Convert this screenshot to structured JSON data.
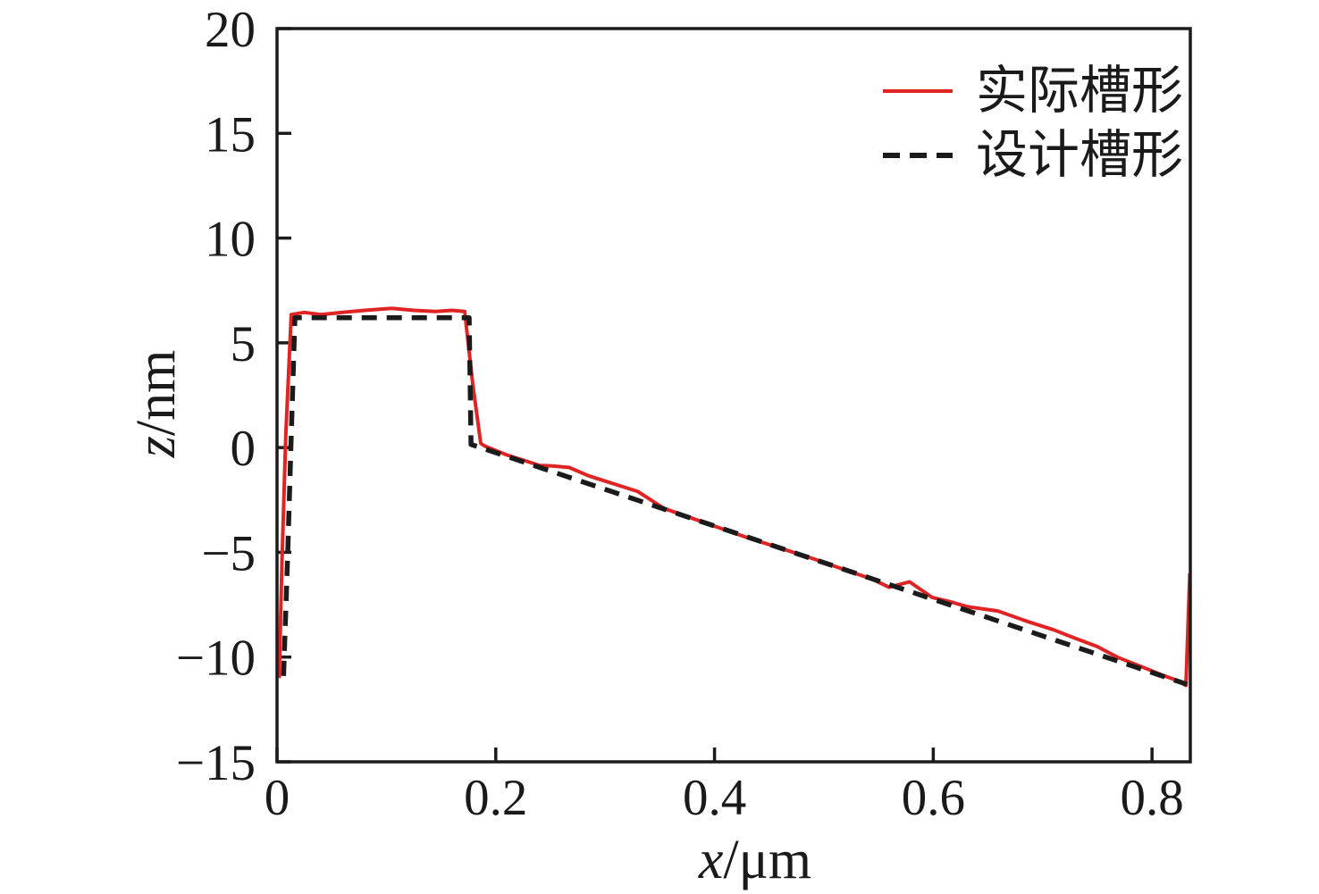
{
  "figure": {
    "background": "#ffffff",
    "text_color": "#1a1a1a"
  },
  "legend": {
    "position": "upper right",
    "items": [
      {
        "label": "实际槽形",
        "style": "solid",
        "color": "#e02424"
      },
      {
        "label": "设计槽形",
        "style": "dashed",
        "color": "#1b1b1b"
      }
    ]
  },
  "chart_data": {
    "type": "line",
    "title": "",
    "xlabel": "x/μm",
    "xlabel_var": "x",
    "xlabel_unit": "/μm",
    "ylabel": "z/nm",
    "ylabel_var": "z",
    "ylabel_unit": "/nm",
    "xlim": [
      0,
      0.835
    ],
    "ylim": [
      -15,
      20
    ],
    "grid": false,
    "legend_position": "upper right",
    "x_ticks": {
      "values": [
        0,
        0.2,
        0.4,
        0.6,
        0.8
      ],
      "labels": [
        "0",
        "0.2",
        "0.4",
        "0.6",
        "0.8"
      ]
    },
    "y_ticks": {
      "values": [
        -15,
        -10,
        -5,
        0,
        5,
        10,
        15,
        20
      ],
      "labels": [
        "−15",
        "−10",
        "−5",
        "0",
        "5",
        "10",
        "15",
        "20"
      ]
    },
    "axis_color": "#1b1b1b",
    "series": [
      {
        "name": "实际槽形",
        "style": "solid",
        "color": "#e02424",
        "width": 4,
        "points": [
          [
            0.002,
            -11.0
          ],
          [
            0.0045,
            -5.5
          ],
          [
            0.008,
            0.6
          ],
          [
            0.013,
            6.35
          ],
          [
            0.025,
            6.45
          ],
          [
            0.04,
            6.35
          ],
          [
            0.06,
            6.45
          ],
          [
            0.08,
            6.55
          ],
          [
            0.105,
            6.65
          ],
          [
            0.125,
            6.55
          ],
          [
            0.145,
            6.5
          ],
          [
            0.16,
            6.55
          ],
          [
            0.1716,
            6.5
          ],
          [
            0.179,
            3.0
          ],
          [
            0.1863,
            0.2
          ],
          [
            0.19,
            0.07
          ],
          [
            0.21,
            -0.35
          ],
          [
            0.228,
            -0.65
          ],
          [
            0.24,
            -0.85
          ],
          [
            0.252,
            -0.88
          ],
          [
            0.267,
            -0.95
          ],
          [
            0.285,
            -1.35
          ],
          [
            0.3,
            -1.6
          ],
          [
            0.315,
            -1.85
          ],
          [
            0.33,
            -2.1
          ],
          [
            0.3537,
            -2.9
          ],
          [
            0.37,
            -3.2
          ],
          [
            0.4,
            -3.75
          ],
          [
            0.43,
            -4.3
          ],
          [
            0.46,
            -4.8
          ],
          [
            0.49,
            -5.3
          ],
          [
            0.52,
            -5.85
          ],
          [
            0.545,
            -6.3
          ],
          [
            0.5596,
            -6.67
          ],
          [
            0.5784,
            -6.41
          ],
          [
            0.5989,
            -7.15
          ],
          [
            0.615,
            -7.35
          ],
          [
            0.6315,
            -7.6
          ],
          [
            0.659,
            -7.8
          ],
          [
            0.686,
            -8.3
          ],
          [
            0.71,
            -8.7
          ],
          [
            0.727,
            -9.05
          ],
          [
            0.75,
            -9.5
          ],
          [
            0.768,
            -10.0
          ],
          [
            0.79,
            -10.45
          ],
          [
            0.809,
            -10.85
          ],
          [
            0.822,
            -11.1
          ],
          [
            0.831,
            -11.35
          ],
          [
            0.8345,
            -6.0
          ]
        ]
      },
      {
        "name": "设计槽形",
        "style": "dashed",
        "color": "#1b1b1b",
        "width": 5.5,
        "dash": [
          17,
          11
        ],
        "points": [
          [
            0.006,
            -10.9
          ],
          [
            0.0098,
            -5.0
          ],
          [
            0.0127,
            0.0
          ],
          [
            0.0163,
            6.2
          ],
          [
            0.1757,
            6.2
          ],
          [
            0.1774,
            0.15
          ],
          [
            0.832,
            -11.3
          ]
        ]
      }
    ]
  }
}
